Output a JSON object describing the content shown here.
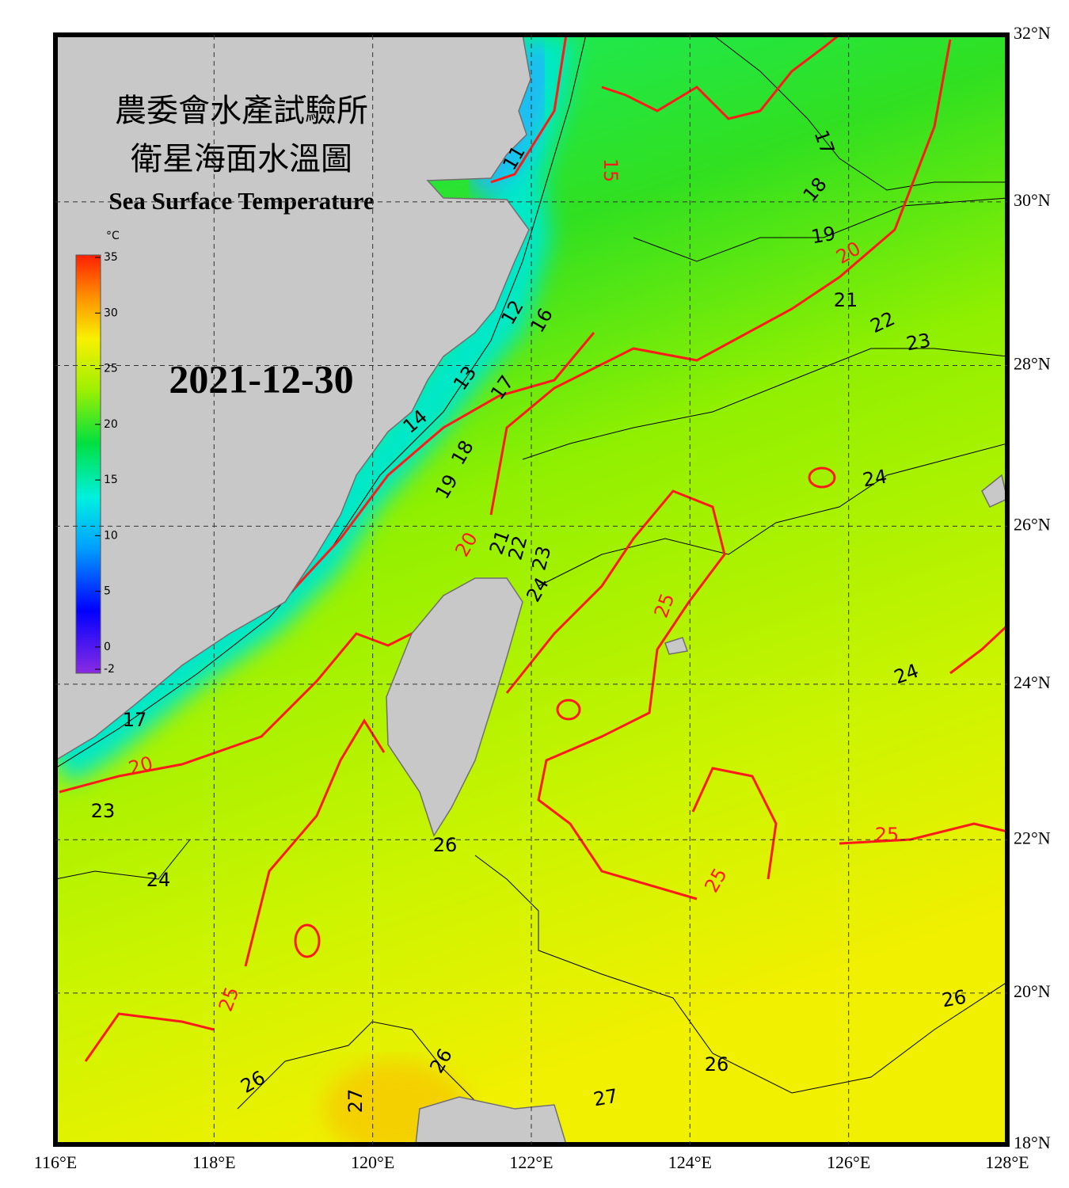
{
  "header": {
    "title_zh_1": "農委會水產試驗所",
    "title_zh_2": "衛星海面水溫圖",
    "title_en": "Sea Surface Temperature",
    "date": "2021-12-30"
  },
  "colorbar": {
    "unit": "°C",
    "ticks": [
      35,
      30,
      25,
      20,
      15,
      10,
      5,
      0,
      -2
    ]
  },
  "axes": {
    "lat_ticks": [
      {
        "value": 32,
        "label": "32°N"
      },
      {
        "value": 30,
        "label": "30°N"
      },
      {
        "value": 28,
        "label": "28°N"
      },
      {
        "value": 26,
        "label": "26°N"
      },
      {
        "value": 24,
        "label": "24°N"
      },
      {
        "value": 22,
        "label": "22°N"
      },
      {
        "value": 20,
        "label": "20°N"
      },
      {
        "value": 18,
        "label": "18°N"
      }
    ],
    "lon_ticks": [
      {
        "value": 116,
        "label": "116°E"
      },
      {
        "value": 118,
        "label": "118°E"
      },
      {
        "value": 120,
        "label": "120°E"
      },
      {
        "value": 122,
        "label": "122°E"
      },
      {
        "value": 124,
        "label": "124°E"
      },
      {
        "value": 126,
        "label": "126°E"
      },
      {
        "value": 128,
        "label": "128°E"
      }
    ]
  },
  "contour_labels": [
    11,
    15,
    17,
    18,
    19,
    20,
    21,
    22,
    23,
    12,
    16,
    13,
    17,
    14,
    18,
    19,
    20,
    21,
    22,
    23,
    24,
    25,
    24,
    24,
    17,
    20,
    23,
    24,
    26,
    25,
    25,
    25,
    26,
    26,
    26,
    26,
    27,
    27
  ]
}
